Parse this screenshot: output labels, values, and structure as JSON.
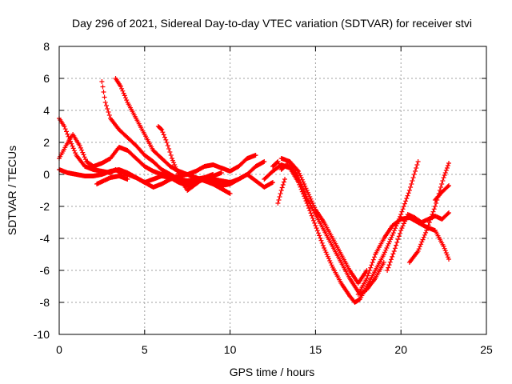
{
  "chart_data": {
    "type": "scatter",
    "title": "Day 296 of 2021, Sidereal Day-to-day VTEC variation (SDTVAR) for receiver stvi",
    "xlabel": "GPS time / hours",
    "ylabel": "SDTVAR / TECUs",
    "xlim": [
      0,
      25
    ],
    "ylim": [
      -10,
      8
    ],
    "xticks": [
      0,
      5,
      10,
      15,
      20,
      25
    ],
    "yticks": [
      -10,
      -8,
      -6,
      -4,
      -2,
      0,
      2,
      4,
      6,
      8
    ],
    "grid": true,
    "marker": "+",
    "color": "#ff0000",
    "series": [
      {
        "name": "trace-1",
        "x": [
          0,
          0.3,
          0.6,
          1.0,
          1.5,
          2.0,
          2.5,
          3.0,
          3.3,
          3.6,
          4.0,
          4.5,
          5.0,
          5.5,
          6.0,
          6.5,
          7.0,
          7.5,
          8.0,
          8.5,
          9.0,
          9.5,
          10.0,
          10.5,
          11.0,
          11.5,
          12.0
        ],
        "y": [
          3.5,
          3.0,
          2.2,
          1.2,
          0.5,
          0.3,
          0.2,
          0.1,
          0.3,
          0.1,
          0.0,
          -0.2,
          -0.5,
          -0.3,
          -0.1,
          -0.2,
          -0.3,
          -0.4,
          -0.3,
          -0.2,
          -0.3,
          -0.4,
          -0.5,
          -0.3,
          0.0,
          0.5,
          0.8
        ]
      },
      {
        "name": "trace-2",
        "x": [
          0,
          0.5,
          1.0,
          1.5,
          2.0,
          2.5,
          3.0,
          3.5,
          4.0,
          4.5,
          5.0,
          5.5,
          6.0,
          6.5,
          7.0,
          7.5,
          8.0,
          8.5,
          9.0,
          9.5,
          10.0
        ],
        "y": [
          0.3,
          0.1,
          0.0,
          -0.1,
          -0.1,
          0.0,
          0.2,
          0.3,
          0.1,
          -0.2,
          -0.5,
          -0.8,
          -0.6,
          -0.3,
          -0.1,
          0.0,
          -0.2,
          -0.4,
          -0.6,
          -0.9,
          -1.2
        ]
      },
      {
        "name": "trace-3",
        "x": [
          0,
          0.4,
          0.8,
          1.2,
          1.6,
          2.0,
          2.5,
          3.0,
          3.5,
          4.0,
          4.5,
          5.0,
          5.5,
          6.0,
          6.5,
          7.0,
          7.5,
          8.0,
          8.5,
          9.0,
          9.5
        ],
        "y": [
          1.0,
          1.8,
          2.5,
          1.8,
          0.8,
          0.5,
          0.7,
          1.0,
          1.7,
          1.5,
          1.0,
          0.5,
          0.2,
          0.0,
          -0.2,
          -0.5,
          -0.7,
          -0.5,
          -0.3,
          -0.1,
          0.1
        ]
      },
      {
        "name": "trace-4",
        "x": [
          2.5,
          2.7,
          3.0,
          3.5,
          4.0,
          4.5,
          5.0,
          5.5,
          6.0,
          6.5,
          7.0,
          7.5,
          8.0,
          8.5,
          9.0
        ],
        "y": [
          5.8,
          4.5,
          3.5,
          2.8,
          2.3,
          1.8,
          1.2,
          0.8,
          0.3,
          0.0,
          -0.3,
          -0.6,
          -0.5,
          -0.2,
          0.0
        ]
      },
      {
        "name": "trace-5",
        "x": [
          3.3,
          3.6,
          4.0,
          4.5,
          5.0,
          5.5,
          6.0,
          6.5,
          7.0,
          7.5,
          8.0,
          8.5,
          9.0,
          9.5,
          10.0,
          10.5,
          11.0,
          11.5
        ],
        "y": [
          6.0,
          5.5,
          4.5,
          3.5,
          2.5,
          1.5,
          1.0,
          0.5,
          0.2,
          0.0,
          0.2,
          0.5,
          0.6,
          0.4,
          0.2,
          0.5,
          1.0,
          1.2
        ]
      },
      {
        "name": "trace-6",
        "x": [
          5.8,
          6.0,
          6.3,
          6.6,
          6.9,
          7.2,
          7.5,
          8.0,
          8.5,
          9.0,
          9.5,
          10.0,
          10.5,
          11.0,
          11.5,
          12.0,
          12.5
        ],
        "y": [
          3.0,
          2.8,
          2.0,
          1.0,
          0.2,
          -0.5,
          -1.0,
          -0.6,
          -0.2,
          -0.4,
          -0.7,
          -0.6,
          -0.3,
          0.0,
          -0.4,
          -0.8,
          -0.5
        ]
      },
      {
        "name": "trace-7",
        "x": [
          2.2,
          2.6,
          3.0,
          3.5,
          4.0
        ],
        "y": [
          -0.6,
          -0.4,
          -0.2,
          -0.1,
          -0.3
        ]
      },
      {
        "name": "trace-8",
        "x": [
          12.5,
          12.8,
          13.0,
          13.3,
          13.6,
          14.0,
          14.5,
          15.0,
          15.5,
          16.0,
          16.5,
          17.0,
          17.3,
          17.6,
          18.0,
          18.5,
          19.0
        ],
        "y": [
          0.5,
          0.8,
          0.3,
          0.6,
          0.5,
          -0.2,
          -1.5,
          -2.5,
          -3.5,
          -4.5,
          -5.5,
          -6.5,
          -7.0,
          -7.5,
          -7.2,
          -6.5,
          -5.5
        ]
      },
      {
        "name": "trace-9",
        "x": [
          12.0,
          12.5,
          13.0,
          13.5,
          14.0,
          14.5,
          15.0,
          15.5,
          16.0,
          16.5,
          17.0,
          17.3,
          17.6,
          18.0,
          18.5,
          19.0,
          19.5,
          20.0,
          20.5,
          21.0
        ],
        "y": [
          -0.3,
          0.2,
          0.6,
          0.4,
          -0.5,
          -1.8,
          -3.2,
          -4.6,
          -5.8,
          -6.8,
          -7.6,
          -8.0,
          -7.8,
          -7.0,
          -6.0,
          -5.0,
          -3.8,
          -2.5,
          -1.0,
          0.8
        ]
      },
      {
        "name": "trace-10",
        "x": [
          13.0,
          13.5,
          14.0,
          14.5,
          15.0,
          15.5,
          16.0,
          16.5,
          17.0,
          17.5,
          18.0
        ],
        "y": [
          1.0,
          0.8,
          0.2,
          -1.0,
          -2.2,
          -3.0,
          -4.0,
          -5.0,
          -6.0,
          -6.8,
          -6.0
        ]
      },
      {
        "name": "trace-11",
        "x": [
          17.5,
          18.0,
          18.5,
          19.0,
          19.5,
          20.0,
          20.5,
          21.0,
          21.5,
          22.0,
          22.5,
          22.8
        ],
        "y": [
          -7.5,
          -6.5,
          -5.0,
          -4.0,
          -3.2,
          -2.8,
          -2.7,
          -3.0,
          -3.3,
          -3.5,
          -4.5,
          -5.3
        ]
      },
      {
        "name": "trace-12",
        "x": [
          19.2,
          19.6,
          20.0,
          20.4,
          20.8,
          21.2,
          21.6,
          22.0,
          22.4,
          22.8
        ],
        "y": [
          -6.0,
          -4.8,
          -3.5,
          -2.5,
          -2.7,
          -3.0,
          -2.8,
          -2.6,
          -2.8,
          -2.4
        ]
      },
      {
        "name": "trace-13",
        "x": [
          20.5,
          21.0,
          21.5,
          22.0,
          22.5,
          22.8
        ],
        "y": [
          -5.5,
          -4.8,
          -3.5,
          -2.0,
          -0.2,
          0.7
        ]
      },
      {
        "name": "trace-14",
        "x": [
          22.0,
          22.4,
          22.8
        ],
        "y": [
          -1.6,
          -1.1,
          -0.7
        ]
      },
      {
        "name": "trace-15",
        "x": [
          12.8,
          13.0,
          13.2
        ],
        "y": [
          -1.8,
          -1.0,
          -0.3
        ]
      }
    ]
  }
}
